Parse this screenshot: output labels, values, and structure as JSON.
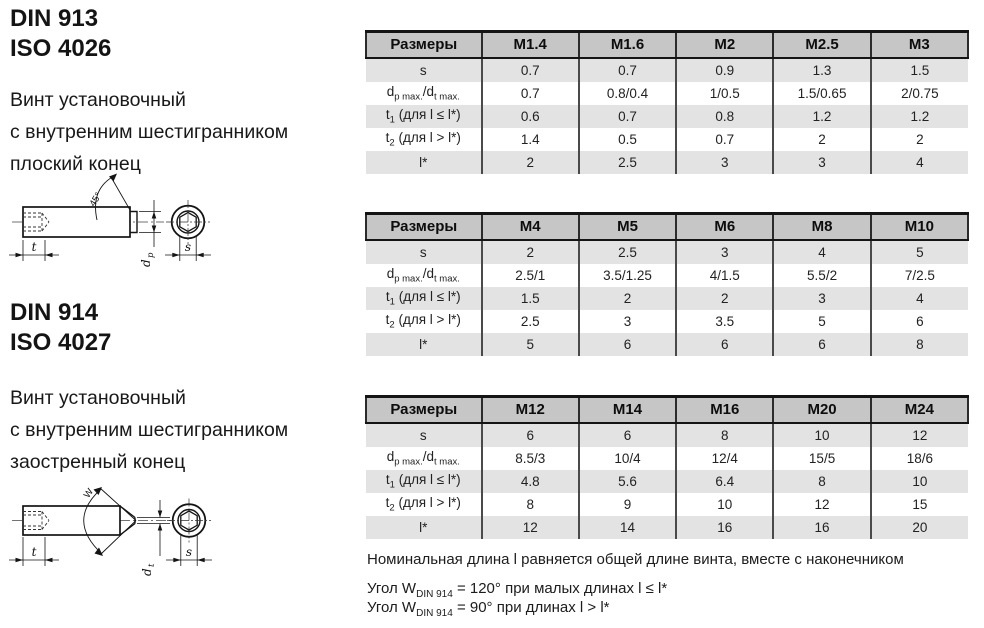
{
  "left": {
    "section1": {
      "code_lines": [
        "DIN 913",
        "ISO 4026"
      ],
      "description": [
        "Винт установочный",
        "с внутренним шестигранником",
        "плоский конец"
      ]
    },
    "section2": {
      "code_lines": [
        "DIN 914",
        "ISO 4027"
      ],
      "description": [
        "Винт установочный",
        "с внутренним шестигранником",
        "заостренный конец"
      ]
    },
    "drawing1": {
      "angle": "45°",
      "t": "t",
      "d_main": "d",
      "d_sub": "p",
      "s": "s"
    },
    "drawing2": {
      "angle": "W",
      "t": "t",
      "d_main": "d",
      "d_sub": "t",
      "s": "s"
    }
  },
  "tables": [
    {
      "header": [
        "Размеры",
        "M1.4",
        "M1.6",
        "M2",
        "M2.5",
        "M3"
      ],
      "rows": [
        {
          "label": [
            [
              "s",
              false
            ]
          ],
          "values": [
            "0.7",
            "0.7",
            "0.9",
            "1.3",
            "1.5"
          ]
        },
        {
          "label": [
            [
              "d",
              false
            ],
            [
              "p max.",
              true
            ],
            [
              "/d",
              false
            ],
            [
              "t max.",
              true
            ]
          ],
          "values": [
            "0.7",
            "0.8/0.4",
            "1/0.5",
            "1.5/0.65",
            "2/0.75"
          ]
        },
        {
          "label": [
            [
              "t",
              false
            ],
            [
              "1",
              true
            ],
            [
              " (для l ≤ l*)",
              false
            ]
          ],
          "values": [
            "0.6",
            "0.7",
            "0.8",
            "1.2",
            "1.2"
          ]
        },
        {
          "label": [
            [
              "t",
              false
            ],
            [
              "2",
              true
            ],
            [
              " (для l > l*)",
              false
            ]
          ],
          "values": [
            "1.4",
            "0.5",
            "0.7",
            "2",
            "2"
          ]
        },
        {
          "label": [
            [
              "l*",
              false
            ]
          ],
          "values": [
            "2",
            "2.5",
            "3",
            "3",
            "4"
          ]
        }
      ]
    },
    {
      "header": [
        "Размеры",
        "M4",
        "M5",
        "M6",
        "M8",
        "M10"
      ],
      "rows": [
        {
          "label": [
            [
              "s",
              false
            ]
          ],
          "values": [
            "2",
            "2.5",
            "3",
            "4",
            "5"
          ]
        },
        {
          "label": [
            [
              "d",
              false
            ],
            [
              "p max.",
              true
            ],
            [
              "/d",
              false
            ],
            [
              "t max.",
              true
            ]
          ],
          "values": [
            "2.5/1",
            "3.5/1.25",
            "4/1.5",
            "5.5/2",
            "7/2.5"
          ]
        },
        {
          "label": [
            [
              "t",
              false
            ],
            [
              "1",
              true
            ],
            [
              " (для l ≤ l*)",
              false
            ]
          ],
          "values": [
            "1.5",
            "2",
            "2",
            "3",
            "4"
          ]
        },
        {
          "label": [
            [
              "t",
              false
            ],
            [
              "2",
              true
            ],
            [
              " (для l > l*)",
              false
            ]
          ],
          "values": [
            "2.5",
            "3",
            "3.5",
            "5",
            "6"
          ]
        },
        {
          "label": [
            [
              "l*",
              false
            ]
          ],
          "values": [
            "5",
            "6",
            "6",
            "6",
            "8"
          ]
        }
      ]
    },
    {
      "header": [
        "Размеры",
        "M12",
        "M14",
        "M16",
        "M20",
        "M24"
      ],
      "rows": [
        {
          "label": [
            [
              "s",
              false
            ]
          ],
          "values": [
            "6",
            "6",
            "8",
            "10",
            "12"
          ]
        },
        {
          "label": [
            [
              "d",
              false
            ],
            [
              "p max.",
              true
            ],
            [
              "/d",
              false
            ],
            [
              "t max.",
              true
            ]
          ],
          "values": [
            "8.5/3",
            "10/4",
            "12/4",
            "15/5",
            "18/6"
          ]
        },
        {
          "label": [
            [
              "t",
              false
            ],
            [
              "1",
              true
            ],
            [
              " (для l ≤ l*)",
              false
            ]
          ],
          "values": [
            "4.8",
            "5.6",
            "6.4",
            "8",
            "10"
          ]
        },
        {
          "label": [
            [
              "t",
              false
            ],
            [
              "2",
              true
            ],
            [
              " (для l > l*)",
              false
            ]
          ],
          "values": [
            "8",
            "9",
            "10",
            "12",
            "15"
          ]
        },
        {
          "label": [
            [
              "l*",
              false
            ]
          ],
          "values": [
            "12",
            "14",
            "16",
            "16",
            "20"
          ]
        }
      ]
    }
  ],
  "notes": {
    "line1": "Номинальная длина l равняется общей длине винта, вместе с наконечником",
    "line2": [
      [
        "Угол W",
        false
      ],
      [
        "DIN 914",
        true
      ],
      [
        " = 120° при малых длинах l ≤ l*",
        false
      ]
    ],
    "line3": [
      [
        "Угол W",
        false
      ],
      [
        "DIN 914",
        true
      ],
      [
        " = 90° при длинах l > l*",
        false
      ]
    ]
  },
  "colors": {
    "header_bg": "#c6c6c6",
    "row_alt_bg": "#e3e3e3",
    "line": "#141414"
  }
}
